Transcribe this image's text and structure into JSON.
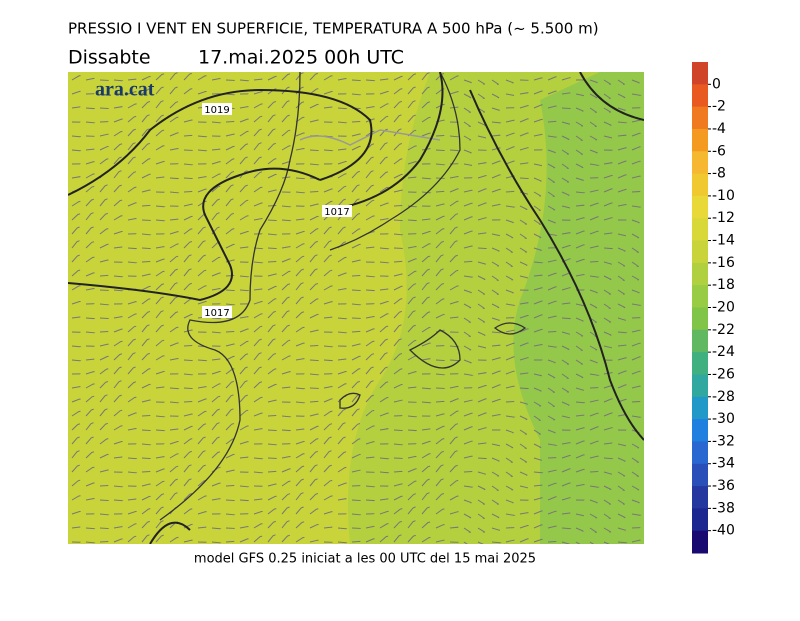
{
  "header": {
    "title": "PRESSIO I VENT EN SUPERFICIE, TEMPERATURA A 500 hPa (~ 5.500 m)",
    "day": "Dissabte",
    "date": "17.mai.2025 00h UTC"
  },
  "logo": "ara.cat",
  "isobar_labels": [
    "1019",
    "1017",
    "1017"
  ],
  "footer": "model GFS 0.25 iniciat a les 00 UTC del 15 mai 2025",
  "colorbar": {
    "ticks": [
      0,
      -2,
      -4,
      -6,
      -8,
      -10,
      -12,
      -14,
      -16,
      -18,
      -20,
      -22,
      -24,
      -26,
      -28,
      -30,
      -32,
      -34,
      -36,
      -38,
      -40
    ],
    "colors": [
      "#d0452a",
      "#e85a20",
      "#f07a20",
      "#f59a20",
      "#f5b830",
      "#f0c830",
      "#e8d838",
      "#d8d838",
      "#c8d43a",
      "#b0d040",
      "#98cc44",
      "#80c448",
      "#60b860",
      "#40b080",
      "#30a8a0",
      "#2098c8",
      "#2080e0",
      "#2868d0",
      "#2850b8",
      "#2438a0",
      "#1c2890",
      "#180a70"
    ]
  }
}
